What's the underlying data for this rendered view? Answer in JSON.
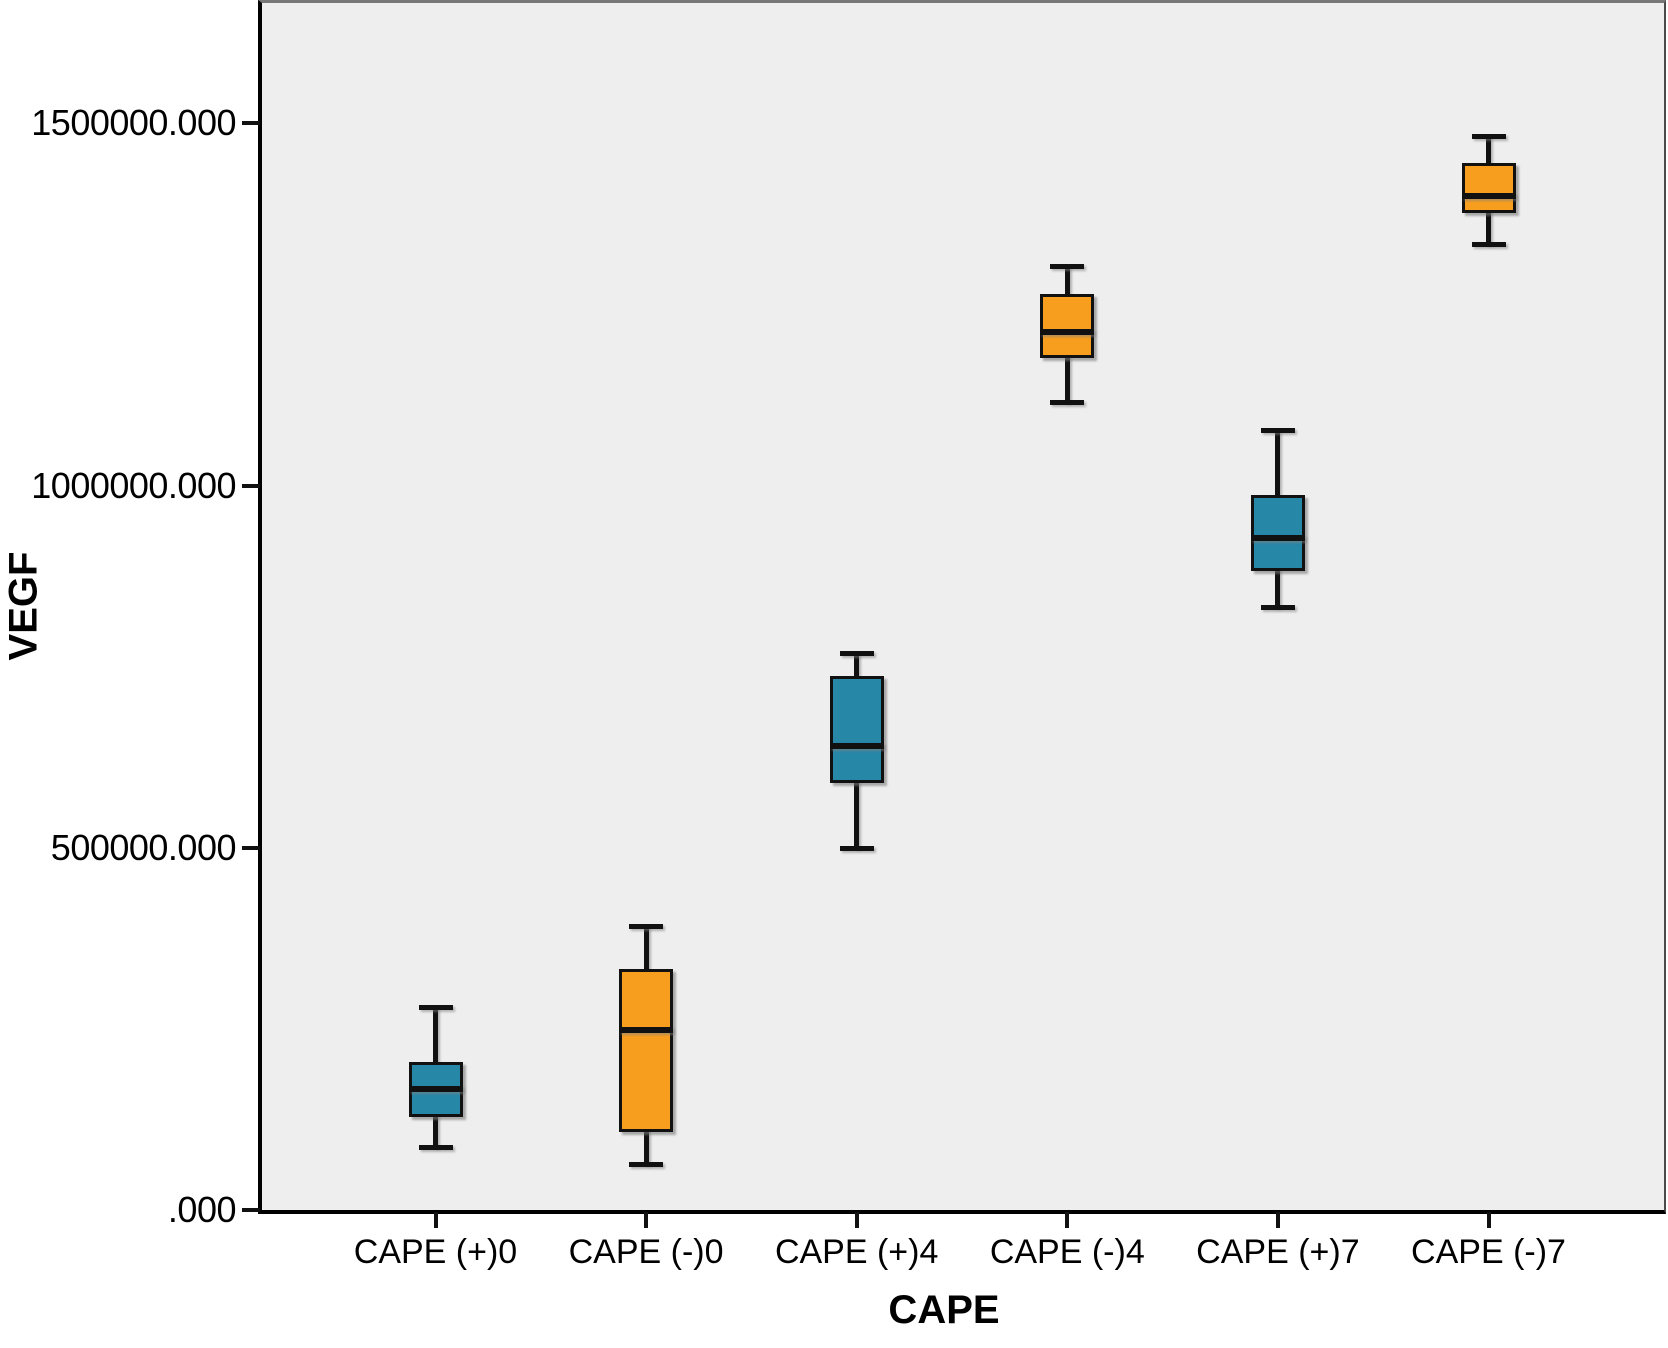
{
  "axes": {
    "y_title": "VEGF",
    "x_title": "CAPE"
  },
  "chart_data": {
    "type": "boxplot",
    "title": "",
    "xlabel": "CAPE",
    "ylabel": "VEGF",
    "ylim": [
      0,
      1666000
    ],
    "grid": false,
    "legend": "none",
    "plot_bg": "#eeeeee",
    "categories": [
      "CAPE (+)0",
      "CAPE (-)0",
      "CAPE (+)4",
      "CAPE (-)4",
      "CAPE (+)7",
      "CAPE (-)7"
    ],
    "y_ticks": [
      {
        "value": 0,
        "label": ".000"
      },
      {
        "value": 500000,
        "label": "500000.000"
      },
      {
        "value": 1000000,
        "label": "1000000.000"
      },
      {
        "value": 1500000,
        "label": "1500000.000"
      }
    ],
    "series": [
      {
        "name": "CAPE (+)0",
        "color": "#2787a6",
        "min": 85000,
        "q1": 128000,
        "median": 167000,
        "q3": 204000,
        "max": 280000
      },
      {
        "name": "CAPE (-)0",
        "color": "#f79e1f",
        "min": 62000,
        "q1": 108000,
        "median": 248000,
        "q3": 333000,
        "max": 392000
      },
      {
        "name": "CAPE (+)4",
        "color": "#2787a6",
        "min": 498000,
        "q1": 589000,
        "median": 640000,
        "q3": 737000,
        "max": 769000
      },
      {
        "name": "CAPE (-)4",
        "color": "#f79e1f",
        "min": 1114000,
        "q1": 1176000,
        "median": 1212000,
        "q3": 1265000,
        "max": 1303000
      },
      {
        "name": "CAPE (+)7",
        "color": "#2787a6",
        "min": 831000,
        "q1": 882000,
        "median": 927000,
        "q3": 987000,
        "max": 1076000
      },
      {
        "name": "CAPE (-)7",
        "color": "#f79e1f",
        "min": 1332000,
        "q1": 1376000,
        "median": 1399000,
        "q3": 1445000,
        "max": 1482000
      }
    ]
  }
}
